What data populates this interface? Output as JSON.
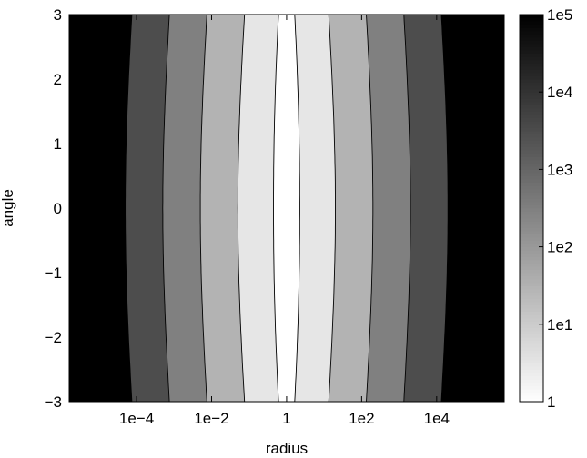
{
  "chart_data": {
    "type": "contour",
    "title": "",
    "xlabel": "radius",
    "ylabel": "angle",
    "x_scale": "log",
    "xlim": [
      1.6e-06,
      630000
    ],
    "ylim": [
      -3,
      3
    ],
    "x_ticks": [
      {
        "value": 0.0001,
        "label": "1e−4"
      },
      {
        "value": 0.01,
        "label": "1e−2"
      },
      {
        "value": 1,
        "label": "1"
      },
      {
        "value": 100,
        "label": "1e2"
      },
      {
        "value": 10000,
        "label": "1e4"
      }
    ],
    "y_ticks": [
      {
        "value": 3,
        "label": "3"
      },
      {
        "value": 2,
        "label": "2"
      },
      {
        "value": 1,
        "label": "1"
      },
      {
        "value": 0,
        "label": "0"
      },
      {
        "value": -1,
        "label": "−1"
      },
      {
        "value": -2,
        "label": "−2"
      },
      {
        "value": -3,
        "label": "−3"
      }
    ],
    "colorbar": {
      "scale": "log",
      "range": [
        1,
        100000
      ],
      "ticks": [
        {
          "value": 1,
          "label": "1"
        },
        {
          "value": 10,
          "label": "1e1"
        },
        {
          "value": 100,
          "label": "1e2"
        },
        {
          "value": 1000,
          "label": "1e3"
        },
        {
          "value": 10000,
          "label": "1e4"
        },
        {
          "value": 100000,
          "label": "1e5"
        }
      ],
      "colormap": "gray reversed (white = 1, black = 1e5)"
    },
    "contour_levels": [
      1,
      10,
      100,
      1000,
      10000,
      100000
    ],
    "grid": false
  }
}
